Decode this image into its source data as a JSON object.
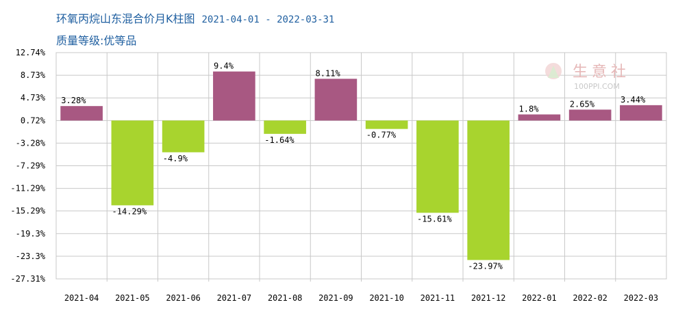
{
  "header": {
    "title": "环氧丙烷山东混合价月K柱图",
    "date_range": "2021-04-01 - 2022-03-31",
    "subtitle": "质量等级:优等品"
  },
  "watermark": {
    "text": "生意社",
    "url_text": "100PPI.COM"
  },
  "colors": {
    "positive": "#a85882",
    "negative": "#a8d42e",
    "grid": "#c8c8c8",
    "title": "#1f5fa0"
  },
  "chart_data": {
    "type": "bar",
    "title": "环氧丙烷山东混合价月K柱图",
    "categories": [
      "2021-04",
      "2021-05",
      "2021-06",
      "2021-07",
      "2021-08",
      "2021-09",
      "2021-10",
      "2021-11",
      "2021-12",
      "2022-01",
      "2022-02",
      "2022-03"
    ],
    "values": [
      3.28,
      -14.29,
      -4.9,
      9.4,
      -1.64,
      8.11,
      -0.77,
      -15.61,
      -23.97,
      1.8,
      2.65,
      3.44
    ],
    "value_labels": [
      "3.28%",
      "-14.29%",
      "-4.9%",
      "9.4%",
      "-1.64%",
      "8.11%",
      "-0.77%",
      "-15.61%",
      "-23.97%",
      "1.8%",
      "2.65%",
      "3.44%"
    ],
    "y_ticks": [
      12.74,
      8.73,
      4.73,
      0.72,
      -3.28,
      -7.29,
      -11.29,
      -15.29,
      -19.3,
      -23.3,
      -27.31
    ],
    "y_tick_labels": [
      "12.74%",
      "8.73%",
      "4.73%",
      "0.72%",
      "-3.28%",
      "-7.29%",
      "-11.29%",
      "-15.29%",
      "-19.3%",
      "-23.3%",
      "-27.31%"
    ],
    "ylim": [
      -27.31,
      12.74
    ],
    "grid": true,
    "legend": "none"
  }
}
